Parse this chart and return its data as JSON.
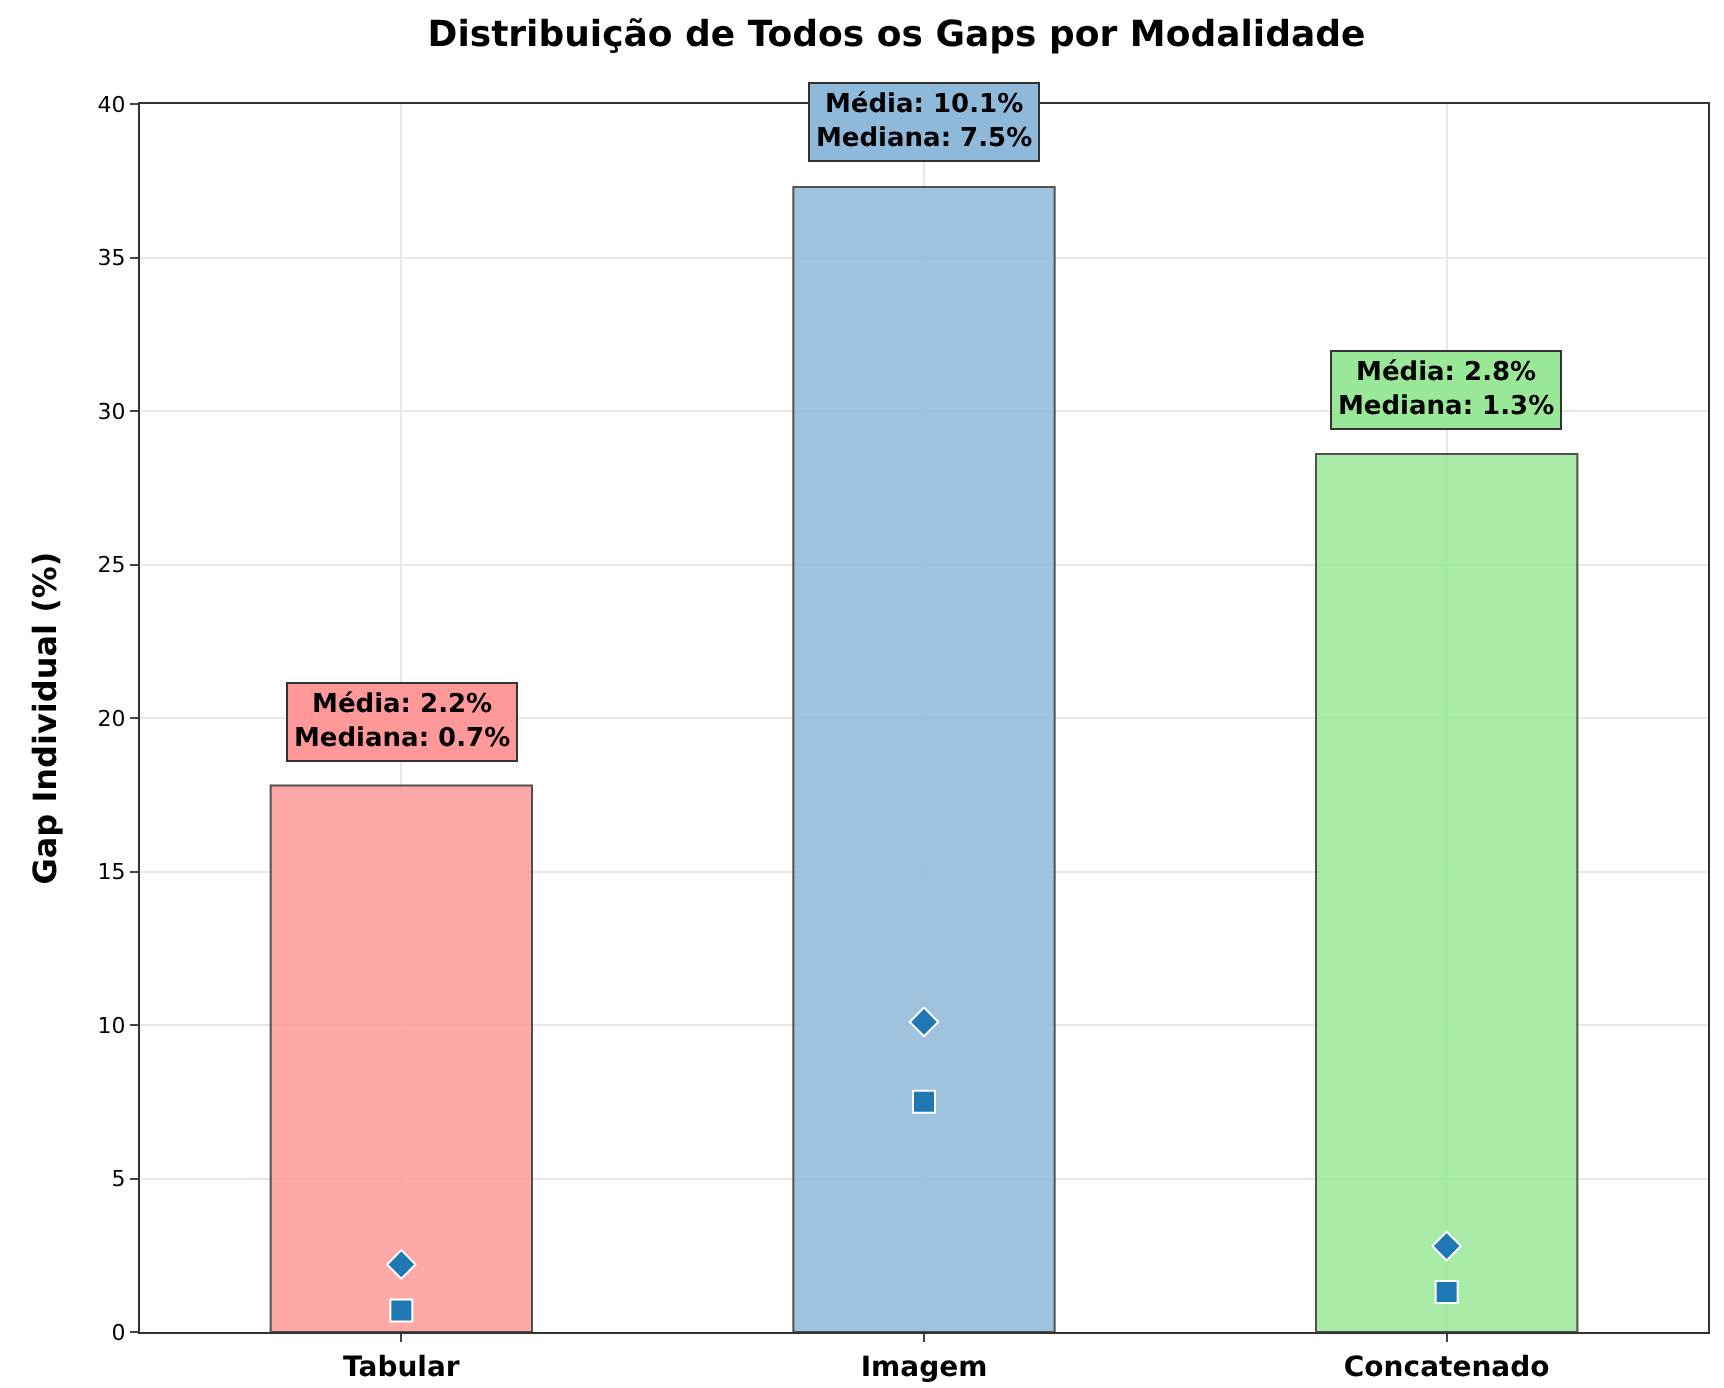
{
  "chart_data": {
    "type": "bar",
    "title": "Distribuição de Todos os Gaps por Modalidade",
    "ylabel": "Gap Individual (%)",
    "categories": [
      "Tabular",
      "Imagem",
      "Concatenado"
    ],
    "series": [
      {
        "type": "bar",
        "colors": [
          "#ff9999",
          "#8fb9da",
          "#98e898"
        ],
        "values": [
          17.8,
          37.3,
          28.6
        ]
      },
      {
        "type": "scatter",
        "color": "#1f77b4",
        "x": [
          "Tabular",
          "Imagem",
          "Concatenado"
        ],
        "values": [
          2.2,
          10.1,
          2.8
        ],
        "marker": "diamond"
      },
      {
        "type": "scatter",
        "color": "#1f77b4",
        "x": [
          "Tabular",
          "Imagem",
          "Concatenado"
        ],
        "values": [
          0.7,
          7.5,
          1.3
        ],
        "marker": "square"
      }
    ],
    "annotations": [
      {
        "text": "Média: 2.2%\nMediana: 0.7%",
        "x": "Tabular",
        "y": 17.8
      },
      {
        "text": "Média: 10.1%\nMediana: 7.5%",
        "x": "Imagem",
        "y": 37.3
      },
      {
        "text": "Média: 2.8%\nMediana: 1.3%",
        "x": "Concatenado",
        "y": 28.6
      }
    ],
    "ylim": [
      0,
      40
    ],
    "yticks": [
      0,
      5,
      10,
      15,
      20,
      25,
      30,
      35,
      40
    ],
    "grid": true
  }
}
